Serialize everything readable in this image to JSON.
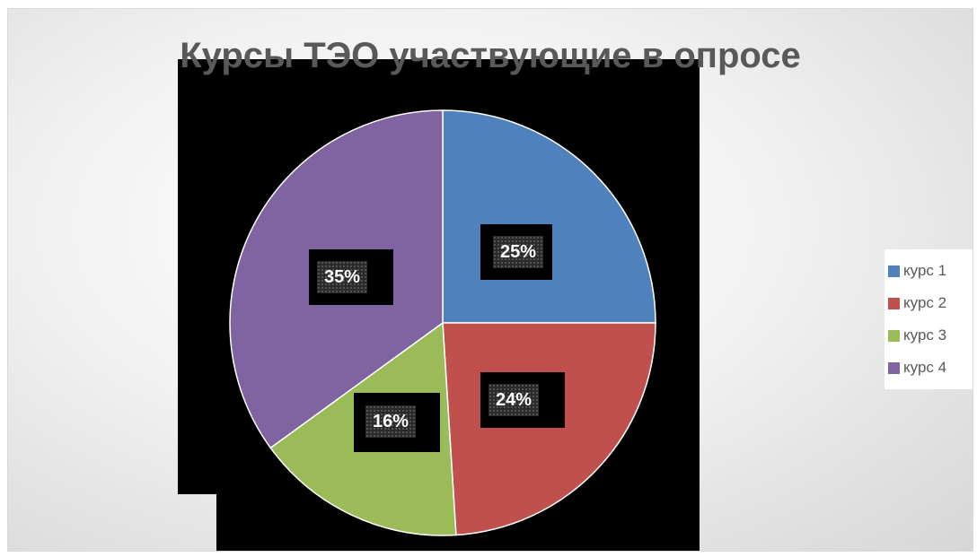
{
  "chart_data": {
    "type": "pie",
    "title": "Курсы ТЭО участвующие в опросе",
    "categories": [
      "курс 1",
      "курс 2",
      "курс 3",
      "курс 4"
    ],
    "values": [
      25,
      24,
      16,
      35
    ],
    "data_labels": [
      "25%",
      "24%",
      "16%",
      "35%"
    ],
    "colors": [
      "#4f81bd",
      "#c0504d",
      "#9bbb59",
      "#8064a2"
    ],
    "legend_position": "right",
    "start_angle": "12 o'clock, clockwise"
  }
}
